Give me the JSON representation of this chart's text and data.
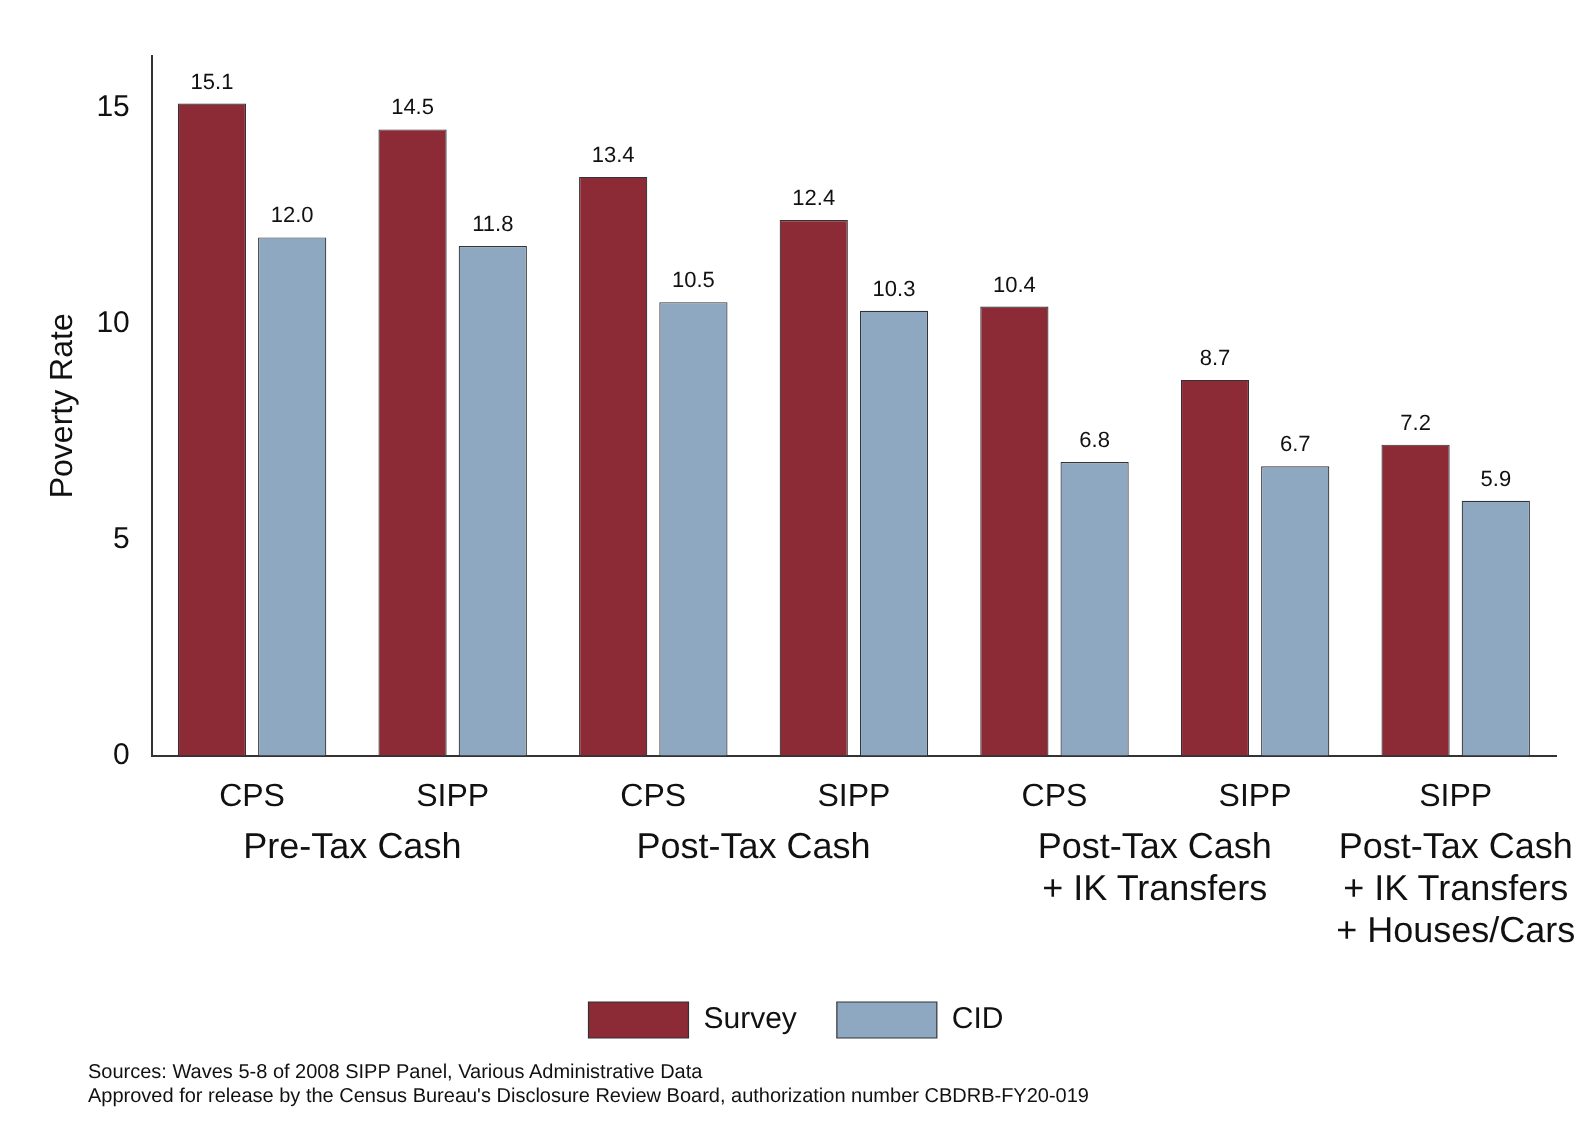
{
  "chart_data": {
    "type": "bar",
    "ylabel": "Poverty Rate",
    "categories": [
      "CPS",
      "SIPP",
      "CPS",
      "SIPP",
      "CPS",
      "SIPP",
      "SIPP"
    ],
    "series": [
      {
        "name": "Survey",
        "color": "#8c2a35",
        "values": [
          15.1,
          14.5,
          13.4,
          12.4,
          10.4,
          8.7,
          7.2
        ],
        "value_labels": [
          "15.1",
          "14.5",
          "13.4",
          "12.4",
          "10.4",
          "8.7",
          "7.2"
        ]
      },
      {
        "name": "CID",
        "color": "#8fa8c2",
        "values": [
          12.0,
          11.8,
          10.5,
          10.3,
          6.8,
          6.7,
          5.9
        ],
        "value_labels": [
          "12.0",
          "11.8",
          "10.5",
          "10.3",
          "6.8",
          "6.7",
          "5.9"
        ]
      }
    ],
    "ylim": [
      0,
      16.2
    ],
    "yticks": [
      0,
      5,
      10,
      15
    ],
    "grid": false,
    "legend": "bottom",
    "annotations": [
      "Pre-Tax Cash",
      "Post-Tax Cash",
      "Post-Tax Cash\n+ IK Transfers",
      "Post-Tax Cash\n+ IK Transfers\n+ Houses/Cars",
      "Sources: Waves 5-8 of 2008 SIPP Panel, Various Administrative Data",
      "Approved for release by the Census Bureau's Disclosure Review Board, authorization number CBDRB-FY20-019"
    ]
  }
}
